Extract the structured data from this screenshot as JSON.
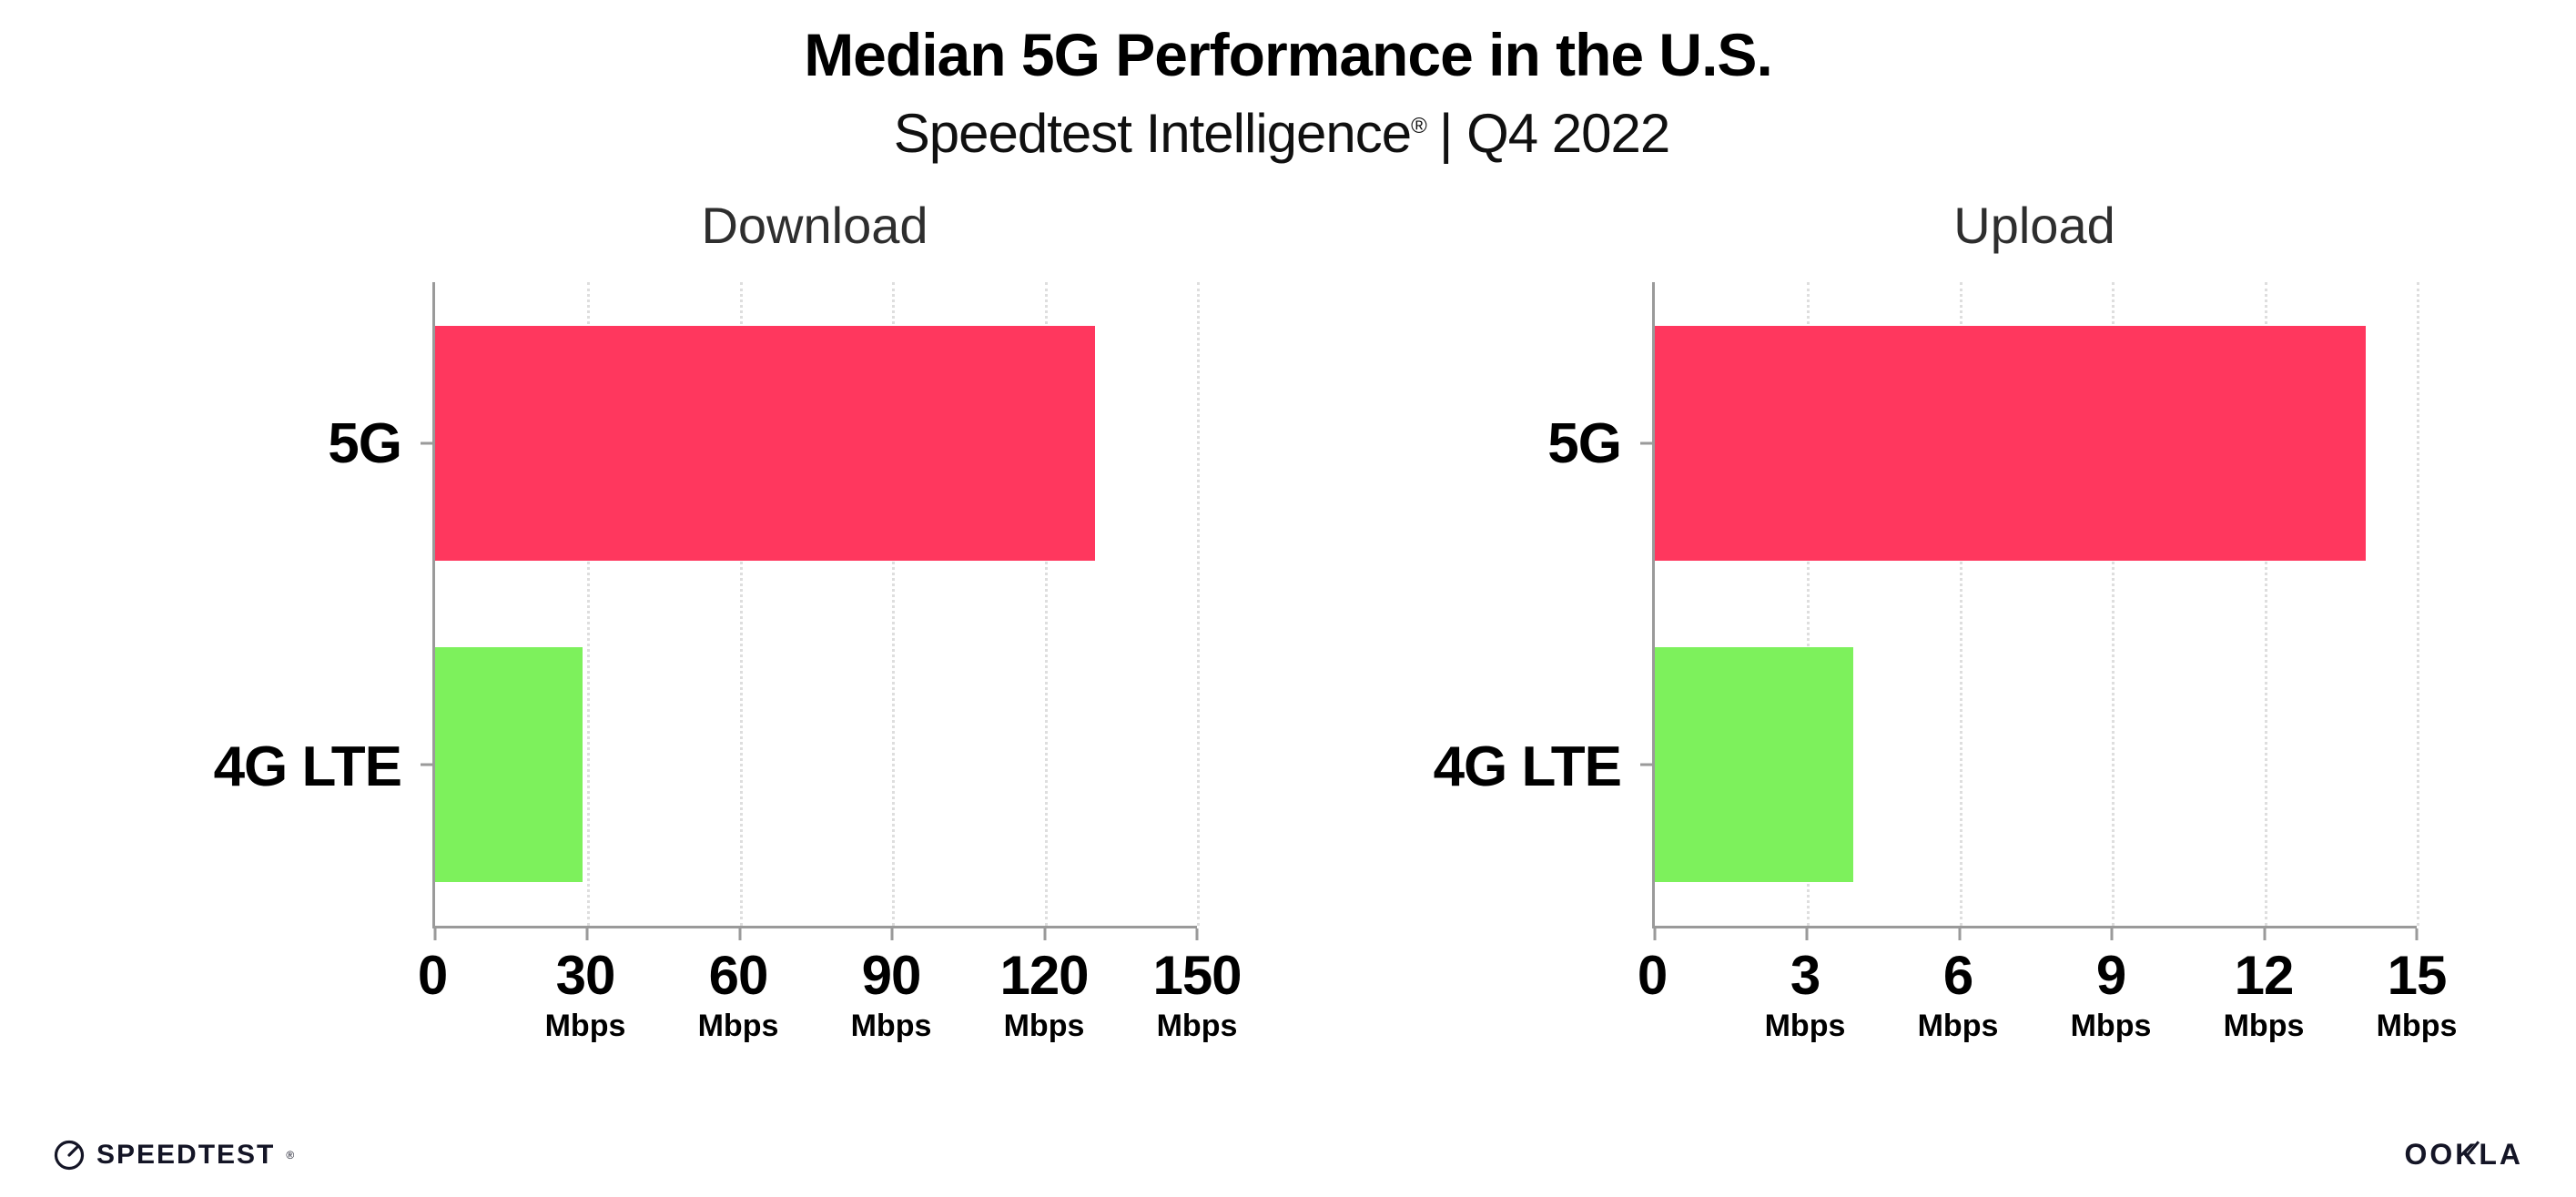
{
  "header": {
    "title": "Median 5G Performance in the U.S.",
    "subtitle_name": "Speedtest Intelligence",
    "subtitle_reg": "®",
    "subtitle_rest": "| Q4 2022"
  },
  "chart_data": [
    {
      "type": "bar",
      "orientation": "horizontal",
      "title": "Download",
      "categories": [
        "5G",
        "4G LTE"
      ],
      "values": [
        130,
        29
      ],
      "unit": "Mbps",
      "xlabel": "",
      "ylabel": "",
      "xlim": [
        0,
        150
      ],
      "xticks": [
        0,
        30,
        60,
        90,
        120,
        150
      ],
      "bar_colors": [
        "#ff375e",
        "#7df15c"
      ],
      "grid": "dotted-vertical",
      "legend": "none"
    },
    {
      "type": "bar",
      "orientation": "horizontal",
      "title": "Upload",
      "categories": [
        "5G",
        "4G LTE"
      ],
      "values": [
        14,
        3.9
      ],
      "unit": "Mbps",
      "xlabel": "",
      "ylabel": "",
      "xlim": [
        0,
        15
      ],
      "xticks": [
        0,
        3,
        6,
        9,
        12,
        15
      ],
      "bar_colors": [
        "#ff375e",
        "#7df15c"
      ],
      "grid": "dotted-vertical",
      "legend": "none"
    }
  ],
  "colors": {
    "bar_5g": "#ff375e",
    "bar_4g_lte": "#7df15c",
    "axis": "#9a9a9a",
    "gridline": "#dedede",
    "brand_dark": "#141526"
  },
  "footer": {
    "speedtest_label": "SPEEDTEST",
    "speedtest_reg": "®",
    "ookla_label": "OOKLA",
    "icons": {
      "left": "speedtest-gauge-icon",
      "right": "ookla-needle"
    }
  }
}
